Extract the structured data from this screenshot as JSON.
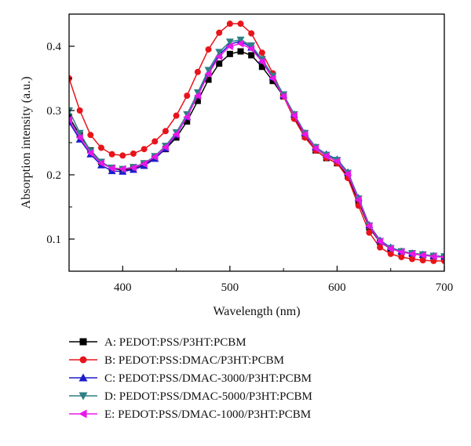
{
  "chart_data": {
    "type": "line",
    "xlabel": "Wavelength (nm)",
    "ylabel": "Absorption intensity (a.u.)",
    "xlim": [
      350,
      700
    ],
    "ylim": [
      0.05,
      0.45
    ],
    "x_ticks": [
      400,
      500,
      600,
      700
    ],
    "x_tick_labels": [
      "400",
      "500",
      "600",
      "700"
    ],
    "y_ticks": [
      0.1,
      0.2,
      0.3,
      0.4
    ],
    "y_tick_labels": [
      "0.1",
      "0.2",
      "0.3",
      "0.4"
    ],
    "grid": false,
    "legend_position": "below",
    "series": [
      {
        "name": "A: PEDOT:PSS/P3HT:PCBM",
        "color": "#000000",
        "marker": "square",
        "x": [
          350,
          360,
          370,
          380,
          390,
          400,
          410,
          420,
          430,
          440,
          450,
          460,
          470,
          480,
          490,
          500,
          510,
          520,
          530,
          540,
          550,
          560,
          570,
          580,
          590,
          600,
          610,
          620,
          630,
          640,
          650,
          660,
          670,
          680,
          690,
          700
        ],
        "y": [
          0.29,
          0.262,
          0.238,
          0.22,
          0.21,
          0.207,
          0.21,
          0.216,
          0.226,
          0.24,
          0.258,
          0.283,
          0.315,
          0.348,
          0.373,
          0.388,
          0.392,
          0.386,
          0.368,
          0.346,
          0.322,
          0.29,
          0.26,
          0.238,
          0.226,
          0.218,
          0.198,
          0.158,
          0.118,
          0.095,
          0.085,
          0.08,
          0.077,
          0.075,
          0.073,
          0.072
        ]
      },
      {
        "name": "B: PEDOT:PSS:DMAC/P3HT:PCBM",
        "color": "#e8141b",
        "marker": "circle",
        "x": [
          350,
          360,
          370,
          380,
          390,
          400,
          410,
          420,
          430,
          440,
          450,
          460,
          470,
          480,
          490,
          500,
          510,
          520,
          530,
          540,
          550,
          560,
          570,
          580,
          590,
          600,
          610,
          620,
          630,
          640,
          650,
          660,
          670,
          680,
          690,
          700
        ],
        "y": [
          0.35,
          0.3,
          0.262,
          0.242,
          0.232,
          0.23,
          0.233,
          0.24,
          0.252,
          0.268,
          0.292,
          0.323,
          0.36,
          0.395,
          0.421,
          0.435,
          0.435,
          0.42,
          0.39,
          0.358,
          0.322,
          0.287,
          0.258,
          0.238,
          0.226,
          0.218,
          0.195,
          0.152,
          0.11,
          0.087,
          0.077,
          0.072,
          0.069,
          0.067,
          0.066,
          0.066
        ]
      },
      {
        "name": "C: PEDOT:PSS/DMAC-3000/P3HT:PCBM",
        "color": "#1c1ccc",
        "marker": "triangle-up",
        "x": [
          350,
          360,
          370,
          380,
          390,
          400,
          410,
          420,
          430,
          440,
          450,
          460,
          470,
          480,
          490,
          500,
          510,
          520,
          530,
          540,
          550,
          560,
          570,
          580,
          590,
          600,
          610,
          620,
          630,
          640,
          650,
          660,
          670,
          680,
          690,
          700
        ],
        "y": [
          0.282,
          0.255,
          0.232,
          0.215,
          0.206,
          0.205,
          0.208,
          0.214,
          0.225,
          0.241,
          0.262,
          0.29,
          0.324,
          0.359,
          0.387,
          0.403,
          0.408,
          0.398,
          0.378,
          0.352,
          0.324,
          0.294,
          0.265,
          0.243,
          0.232,
          0.224,
          0.204,
          0.164,
          0.122,
          0.098,
          0.087,
          0.081,
          0.078,
          0.076,
          0.074,
          0.073
        ]
      },
      {
        "name": "D: PEDOT:PSS/DMAC-5000/P3HT:PCBM",
        "color": "#2e7f84",
        "marker": "triangle-down",
        "x": [
          350,
          360,
          370,
          380,
          390,
          400,
          410,
          420,
          430,
          440,
          450,
          460,
          470,
          480,
          490,
          500,
          510,
          520,
          530,
          540,
          550,
          560,
          570,
          580,
          590,
          600,
          610,
          620,
          630,
          640,
          650,
          660,
          670,
          680,
          690,
          700
        ],
        "y": [
          0.3,
          0.265,
          0.237,
          0.22,
          0.211,
          0.209,
          0.212,
          0.218,
          0.229,
          0.245,
          0.266,
          0.294,
          0.328,
          0.363,
          0.391,
          0.407,
          0.41,
          0.401,
          0.38,
          0.354,
          0.325,
          0.294,
          0.265,
          0.243,
          0.231,
          0.223,
          0.203,
          0.163,
          0.121,
          0.097,
          0.086,
          0.081,
          0.078,
          0.076,
          0.074,
          0.073
        ]
      },
      {
        "name": "E: PEDOT:PSS/DMAC-1000/P3HT:PCBM",
        "color": "#e817e8",
        "marker": "triangle-left",
        "x": [
          350,
          360,
          370,
          380,
          390,
          400,
          410,
          420,
          430,
          440,
          450,
          460,
          470,
          480,
          490,
          500,
          510,
          520,
          530,
          540,
          550,
          560,
          570,
          580,
          590,
          600,
          610,
          620,
          630,
          640,
          650,
          660,
          670,
          680,
          690,
          700
        ],
        "y": [
          0.286,
          0.258,
          0.234,
          0.218,
          0.21,
          0.209,
          0.211,
          0.217,
          0.228,
          0.243,
          0.263,
          0.29,
          0.323,
          0.357,
          0.384,
          0.4,
          0.404,
          0.396,
          0.376,
          0.35,
          0.322,
          0.292,
          0.263,
          0.241,
          0.229,
          0.221,
          0.201,
          0.161,
          0.12,
          0.096,
          0.085,
          0.08,
          0.077,
          0.075,
          0.073,
          0.072
        ]
      }
    ]
  }
}
